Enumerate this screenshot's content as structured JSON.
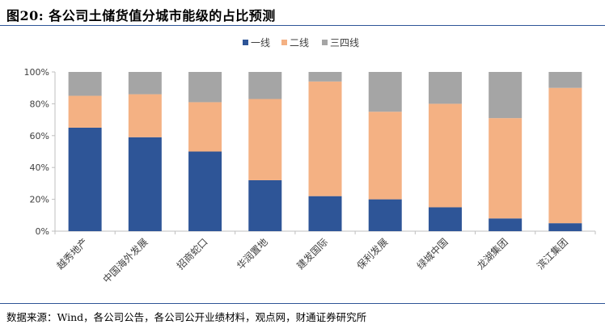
{
  "figure": {
    "title": "图20: 各公司土储货值分城市能级的占比预测",
    "source": "数据来源：Wind，各公司公告，各公司公开业绩材料，观点网，财通证券研究所"
  },
  "chart_data": {
    "type": "bar",
    "stacked": true,
    "percent": true,
    "categories": [
      "越秀地产",
      "中国海外发展",
      "招商蛇口",
      "华润置地",
      "建发国际",
      "保利发展",
      "绿城中国",
      "龙湖集团",
      "滨江集团"
    ],
    "series": [
      {
        "name": "一线",
        "color": "#2e5597",
        "values": [
          65,
          59,
          50,
          32,
          22,
          20,
          15,
          8,
          5
        ]
      },
      {
        "name": "二线",
        "color": "#f4b183",
        "values": [
          20,
          27,
          31,
          51,
          72,
          55,
          65,
          63,
          85
        ]
      },
      {
        "name": "三四线",
        "color": "#a5a5a5",
        "values": [
          15,
          14,
          19,
          17,
          6,
          25,
          20,
          29,
          10
        ]
      }
    ],
    "yticks": [
      "0%",
      "20%",
      "40%",
      "60%",
      "80%",
      "100%"
    ],
    "ylim": [
      0,
      100
    ],
    "legend_position": "top-center",
    "grid": false
  }
}
